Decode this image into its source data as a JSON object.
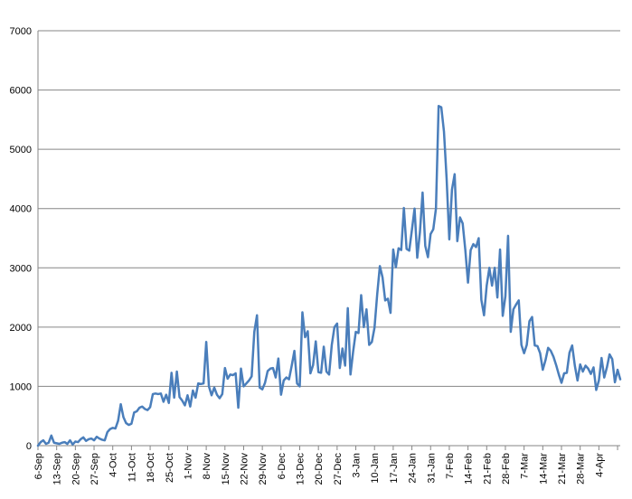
{
  "chart_data": {
    "type": "line",
    "title": "",
    "xlabel": "",
    "ylabel": "",
    "ylim": [
      0,
      7000
    ],
    "yticks": [
      0,
      1000,
      2000,
      3000,
      4000,
      5000,
      6000,
      7000
    ],
    "grid": "horizontal",
    "legend": "none",
    "line_color": "#4a7ebb",
    "x_start": "6-Sep",
    "x_tick_labels": [
      "6-Sep",
      "13-Sep",
      "20-Sep",
      "27-Sep",
      "4-Oct",
      "11-Oct",
      "18-Oct",
      "25-Oct",
      "1-Nov",
      "8-Nov",
      "15-Nov",
      "22-Nov",
      "29-Nov",
      "6-Dec",
      "13-Dec",
      "20-Dec",
      "27-Dec",
      "3-Jan",
      "10-Jan",
      "17-Jan",
      "24-Jan",
      "31-Jan",
      "7-Feb",
      "14-Feb",
      "21-Feb",
      "28-Feb",
      "7-Mar",
      "14-Mar",
      "21-Mar",
      "28-Mar",
      "4-Apr"
    ],
    "series": [
      {
        "values": [
          0,
          60,
          90,
          30,
          50,
          170,
          50,
          40,
          30,
          50,
          60,
          30,
          90,
          20,
          70,
          60,
          110,
          140,
          80,
          110,
          120,
          90,
          150,
          120,
          100,
          90,
          230,
          280,
          300,
          290,
          420,
          700,
          480,
          380,
          350,
          370,
          560,
          580,
          640,
          660,
          620,
          600,
          650,
          870,
          880,
          870,
          880,
          740,
          860,
          720,
          1230,
          810,
          1250,
          820,
          760,
          680,
          850,
          660,
          930,
          810,
          1050,
          1040,
          1050,
          1750,
          1000,
          850,
          980,
          860,
          800,
          870,
          1310,
          1130,
          1200,
          1190,
          1220,
          640,
          1300,
          1000,
          1050,
          1100,
          1170,
          1920,
          2200,
          980,
          950,
          1060,
          1260,
          1300,
          1310,
          1150,
          1470,
          860,
          1100,
          1150,
          1120,
          1350,
          1600,
          1050,
          1000,
          2250,
          1830,
          1930,
          1220,
          1360,
          1760,
          1240,
          1230,
          1670,
          1250,
          1200,
          1700,
          2000,
          2060,
          1310,
          1640,
          1350,
          2320,
          1200,
          1590,
          1920,
          1900,
          2540,
          2000,
          2300,
          1700,
          1750,
          1990,
          2550,
          3030,
          2840,
          2450,
          2480,
          2240,
          3310,
          3010,
          3330,
          3300,
          4010,
          3320,
          3290,
          3640,
          4000,
          3170,
          3600,
          4270,
          3370,
          3180,
          3570,
          3650,
          4000,
          5730,
          5710,
          5300,
          4500,
          3480,
          4320,
          4580,
          3450,
          3850,
          3750,
          3300,
          2750,
          3300,
          3400,
          3350,
          3500,
          2460,
          2200,
          2700,
          3000,
          2700,
          3000,
          2500,
          3310,
          2190,
          2520,
          3540,
          1920,
          2300,
          2380,
          2450,
          1700,
          1560,
          1700,
          2100,
          2170,
          1690,
          1680,
          1560,
          1280,
          1440,
          1650,
          1600,
          1500,
          1360,
          1200,
          1060,
          1220,
          1230,
          1570,
          1690,
          1350,
          1100,
          1370,
          1250,
          1350,
          1300,
          1210,
          1320,
          940,
          1100,
          1480,
          1150,
          1320,
          1540,
          1460,
          1070,
          1280,
          1120
        ]
      }
    ]
  }
}
